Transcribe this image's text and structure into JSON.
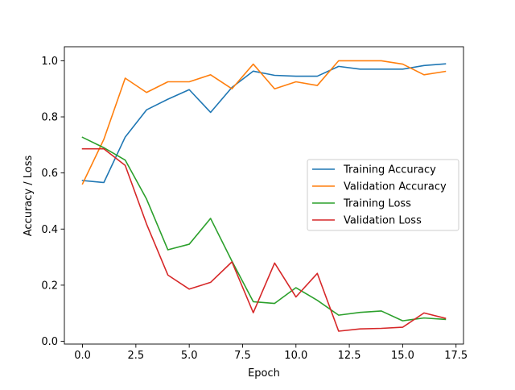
{
  "chart_data": {
    "type": "line",
    "title": "",
    "xlabel": "Epoch",
    "ylabel": "Accuracy / Loss",
    "xlim": [
      -0.85,
      17.85
    ],
    "ylim": [
      -0.01,
      1.05
    ],
    "x_ticks": [
      0.0,
      2.5,
      5.0,
      7.5,
      10.0,
      12.5,
      15.0,
      17.5
    ],
    "x_tick_labels": [
      "0.0",
      "2.5",
      "5.0",
      "7.5",
      "10.0",
      "12.5",
      "15.0",
      "17.5"
    ],
    "y_ticks": [
      0.0,
      0.2,
      0.4,
      0.6,
      0.8,
      1.0
    ],
    "y_tick_labels": [
      "0.0",
      "0.2",
      "0.4",
      "0.6",
      "0.8",
      "1.0"
    ],
    "grid": false,
    "legend_position": "center-right",
    "x": [
      0,
      1,
      2,
      3,
      4,
      5,
      6,
      7,
      8,
      9,
      10,
      11,
      12,
      13,
      14,
      15,
      16,
      17
    ],
    "series": [
      {
        "name": "Training Accuracy",
        "color": "#1f77b4",
        "values": [
          0.573,
          0.566,
          0.728,
          0.825,
          0.863,
          0.897,
          0.816,
          0.905,
          0.963,
          0.948,
          0.945,
          0.945,
          0.98,
          0.97,
          0.97,
          0.97,
          0.983,
          0.989
        ]
      },
      {
        "name": "Validation Accuracy",
        "color": "#ff7f0e",
        "values": [
          0.561,
          0.72,
          0.938,
          0.887,
          0.925,
          0.925,
          0.95,
          0.9,
          0.988,
          0.9,
          0.925,
          0.912,
          1.0,
          1.0,
          1.0,
          0.988,
          0.95,
          0.962
        ]
      },
      {
        "name": "Training Loss",
        "color": "#2ca02c",
        "values": [
          0.727,
          0.69,
          0.646,
          0.507,
          0.326,
          0.346,
          0.438,
          0.286,
          0.141,
          0.135,
          0.191,
          0.146,
          0.093,
          0.103,
          0.108,
          0.073,
          0.083,
          0.078
        ]
      },
      {
        "name": "Validation Loss",
        "color": "#d62728",
        "values": [
          0.686,
          0.686,
          0.627,
          0.418,
          0.236,
          0.186,
          0.21,
          0.283,
          0.102,
          0.279,
          0.158,
          0.242,
          0.036,
          0.044,
          0.046,
          0.05,
          0.101,
          0.082
        ]
      }
    ]
  }
}
